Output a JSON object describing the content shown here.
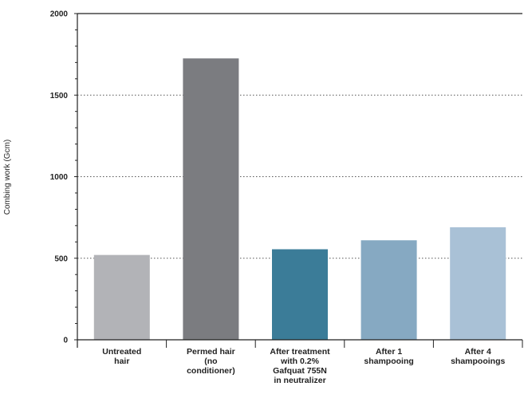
{
  "chart_data": {
    "type": "bar",
    "title": "",
    "xlabel": "",
    "ylabel": "Combing work (Gcm)",
    "ylim": [
      0,
      2000
    ],
    "yticks": [
      0,
      500,
      1000,
      1500,
      2000
    ],
    "grid": "horizontal dotted",
    "legend": "none",
    "categories": [
      [
        "Untreated",
        "hair"
      ],
      [
        "Permed hair",
        "(no",
        "conditioner)"
      ],
      [
        "After treatment",
        "with 0.2%",
        "Gafquat 755N",
        "in neutralizer"
      ],
      [
        "After 1",
        "shampooing"
      ],
      [
        "After 4",
        "shampooings"
      ]
    ],
    "values": [
      520,
      1725,
      555,
      610,
      690
    ],
    "colors": [
      "#b2b3b7",
      "#7b7c80",
      "#3b7c98",
      "#86a9c2",
      "#a9c1d6"
    ]
  }
}
